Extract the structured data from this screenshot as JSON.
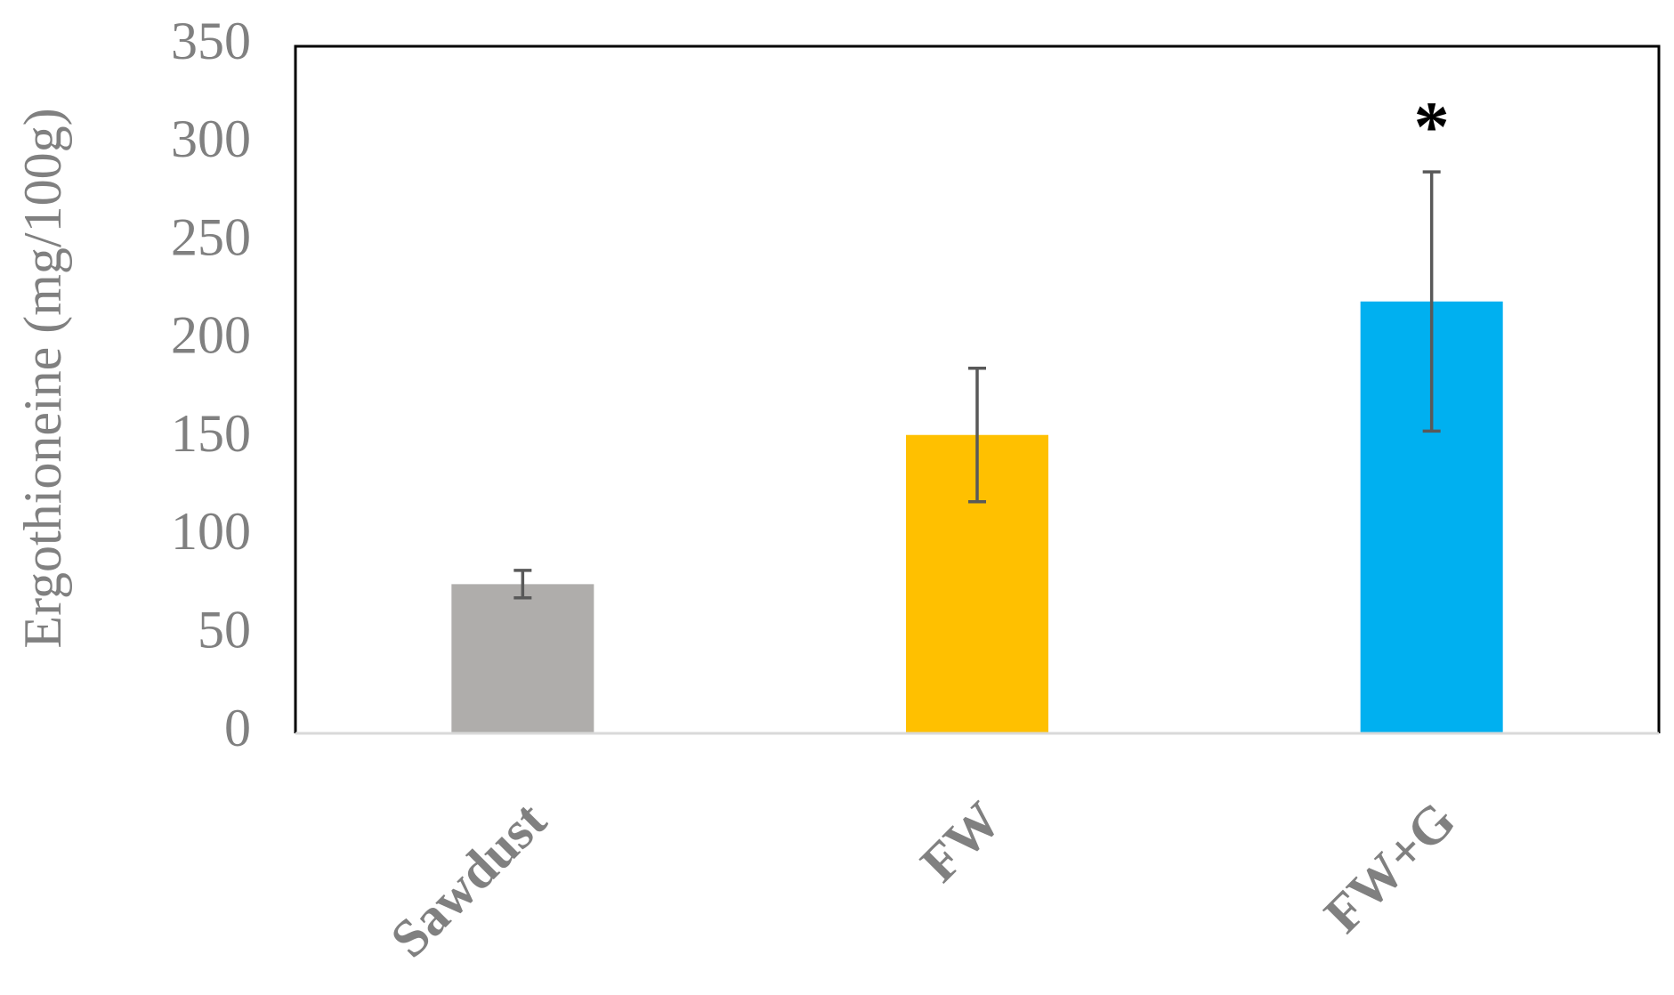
{
  "chart_data": {
    "type": "bar",
    "y_label": "Ergothioneine (mg/100g)",
    "categories": [
      "Sawdust",
      "FW",
      "FW+G"
    ],
    "values": [
      76,
      152,
      220
    ],
    "errors": [
      7,
      34,
      66
    ],
    "colors": [
      "#afadab",
      "#ffc000",
      "#00b0f0"
    ],
    "ylim": [
      0,
      350
    ],
    "yticks": [
      0,
      50,
      100,
      150,
      200,
      250,
      300,
      350
    ],
    "grid": false,
    "annotations": [
      {
        "text": "*",
        "x": "FW+G"
      }
    ]
  }
}
